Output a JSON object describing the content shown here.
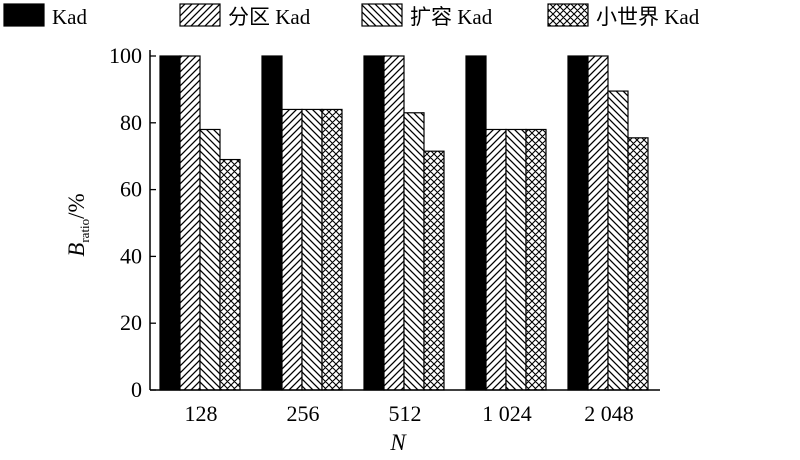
{
  "chart_data": {
    "type": "bar",
    "title": "",
    "xlabel": "N",
    "ylabel": {
      "main": "B",
      "sub": "ratio",
      "unit": "/%"
    },
    "ylim": [
      0,
      100
    ],
    "yticks": [
      0,
      20,
      40,
      60,
      80,
      100
    ],
    "categories": [
      "128",
      "256",
      "512",
      "1 024",
      "2 048"
    ],
    "legend_position": "top",
    "series": [
      {
        "name": "Kad",
        "pattern": "solid",
        "values": [
          100,
          100,
          100,
          100,
          100
        ]
      },
      {
        "name": "分区 Kad",
        "pattern": "diagonal-forward",
        "values": [
          100,
          84,
          100,
          78,
          100
        ]
      },
      {
        "name": "扩容 Kad",
        "pattern": "diagonal-backward",
        "values": [
          78,
          84,
          83,
          78,
          89.5
        ]
      },
      {
        "name": "小世界 Kad",
        "pattern": "crosshatch",
        "values": [
          69,
          84,
          71.5,
          78,
          75.5
        ]
      }
    ]
  }
}
